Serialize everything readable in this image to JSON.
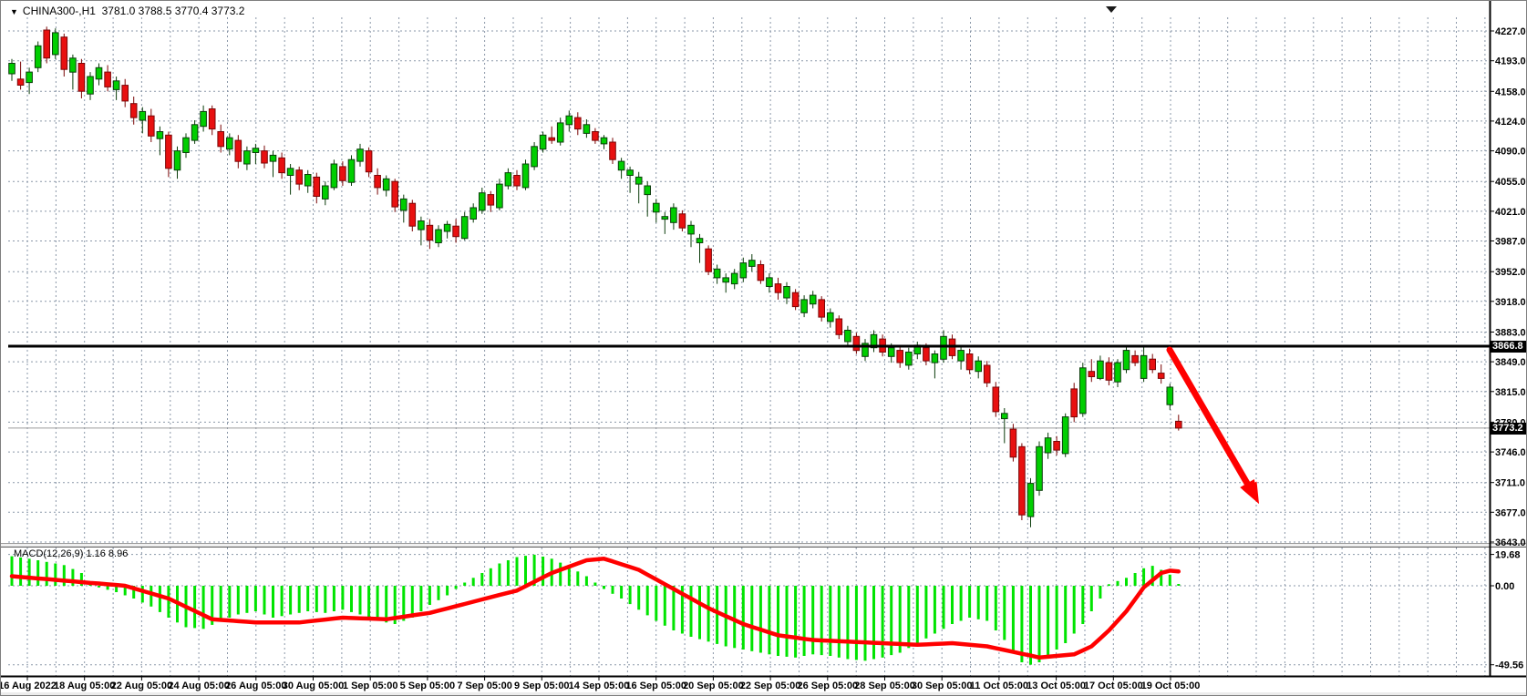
{
  "header": {
    "dropdown_icon": "▼",
    "symbol_period": "CHINA300-,H1",
    "ohlc": "3781.0 3788.5 3770.4 3773.2"
  },
  "indicator": {
    "label": "MACD(12,26,9) 1.16 8.96",
    "name": "MACD",
    "params": "12,26,9",
    "macd_value": "1.16",
    "signal_value": "8.96"
  },
  "levels": {
    "hline": {
      "label": "3866.8",
      "value": 3866.8
    },
    "last_price": {
      "label": "3773.2",
      "value": 3773.2
    }
  },
  "colors": {
    "bull_fill": "#00ce00",
    "bull_border": "#0b3d0b",
    "bear_fill": "#e81010",
    "bear_border": "#7a0606",
    "histogram": "#00e400",
    "signal_line": "#ff0000",
    "grid": "#8a97a8",
    "axis": "#000000",
    "arrow": "#ff0000",
    "hline": "#000000",
    "last_price_line": "#9a9a9a"
  },
  "chart_data": {
    "type": "candlestick",
    "symbol": "CHINA300-",
    "timeframe": "H1",
    "title": "CHINA300-,H1 3781.0 3788.5 3770.4 3773.2",
    "grid": true,
    "y_axis": {
      "max": 4227,
      "min": 3643,
      "labels": [
        "4227.0",
        "4193.0",
        "4158.0",
        "4124.0",
        "4090.0",
        "4055.0",
        "4021.0",
        "3987.0",
        "3952.0",
        "3918.0",
        "3883.0",
        "3849.0",
        "3815.0",
        "3780.0",
        "3746.0",
        "3711.0",
        "3677.0",
        "3643.0"
      ]
    },
    "x_labels": [
      "16 Aug 2022",
      "18 Aug 05:00",
      "22 Aug 05:00",
      "24 Aug 05:00",
      "26 Aug 05:00",
      "30 Aug 05:00",
      "1 Sep 05:00",
      "5 Sep 05:00",
      "7 Sep 05:00",
      "9 Sep 05:00",
      "14 Sep 05:00",
      "16 Sep 05:00",
      "20 Sep 05:00",
      "22 Sep 05:00",
      "26 Sep 05:00",
      "28 Sep 05:00",
      "30 Sep 05:00",
      "11 Oct 05:00",
      "13 Oct 05:00",
      "17 Oct 05:00",
      "19 Oct 05:00"
    ],
    "horizontal_line": 3866.8,
    "last_price": 3773.2,
    "last_bar_ohlc": [
      3781.0,
      3788.5,
      3770.4,
      3773.2
    ],
    "arrow_annotation": {
      "type": "arrow",
      "direction": "down-right",
      "color": "#ff0000"
    },
    "candles": [
      [
        4178,
        4195,
        4170,
        4190
      ],
      [
        4172,
        4192,
        4160,
        4165
      ],
      [
        4168,
        4185,
        4155,
        4180
      ],
      [
        4185,
        4215,
        4180,
        4210
      ],
      [
        4228,
        4232,
        4190,
        4196
      ],
      [
        4200,
        4230,
        4195,
        4225
      ],
      [
        4220,
        4224,
        4175,
        4183
      ],
      [
        4180,
        4200,
        4160,
        4196
      ],
      [
        4190,
        4195,
        4150,
        4158
      ],
      [
        4155,
        4180,
        4148,
        4175
      ],
      [
        4172,
        4190,
        4165,
        4185
      ],
      [
        4180,
        4188,
        4158,
        4163
      ],
      [
        4160,
        4175,
        4148,
        4170
      ],
      [
        4165,
        4172,
        4140,
        4147
      ],
      [
        4144,
        4152,
        4120,
        4128
      ],
      [
        4125,
        4140,
        4110,
        4135
      ],
      [
        4130,
        4138,
        4100,
        4107
      ],
      [
        4104,
        4118,
        4085,
        4112
      ],
      [
        4108,
        4112,
        4060,
        4070
      ],
      [
        4068,
        4095,
        4058,
        4090
      ],
      [
        4088,
        4110,
        4082,
        4105
      ],
      [
        4102,
        4125,
        4098,
        4120
      ],
      [
        4118,
        4142,
        4112,
        4135
      ],
      [
        4138,
        4142,
        4108,
        4115
      ],
      [
        4112,
        4120,
        4088,
        4095
      ],
      [
        4092,
        4110,
        4085,
        4105
      ],
      [
        4102,
        4108,
        4070,
        4078
      ],
      [
        4075,
        4095,
        4068,
        4090
      ],
      [
        4088,
        4098,
        4075,
        4093
      ],
      [
        4090,
        4096,
        4070,
        4076
      ],
      [
        4078,
        4090,
        4060,
        4085
      ],
      [
        4082,
        4088,
        4058,
        4065
      ],
      [
        4062,
        4075,
        4040,
        4070
      ],
      [
        4068,
        4072,
        4045,
        4052
      ],
      [
        4050,
        4068,
        4042,
        4063
      ],
      [
        4060,
        4065,
        4030,
        4038
      ],
      [
        4035,
        4055,
        4028,
        4050
      ],
      [
        4048,
        4080,
        4045,
        4075
      ],
      [
        4072,
        4078,
        4050,
        4056
      ],
      [
        4054,
        4085,
        4050,
        4080
      ],
      [
        4078,
        4098,
        4072,
        4092
      ],
      [
        4090,
        4094,
        4060,
        4066
      ],
      [
        4062,
        4070,
        4040,
        4048
      ],
      [
        4045,
        4062,
        4038,
        4058
      ],
      [
        4055,
        4058,
        4020,
        4026
      ],
      [
        4022,
        4040,
        4008,
        4035
      ],
      [
        4030,
        4034,
        3998,
        4004
      ],
      [
        4000,
        4015,
        3982,
        4010
      ],
      [
        4005,
        4012,
        3978,
        3988
      ],
      [
        3985,
        4005,
        3980,
        4000
      ],
      [
        3998,
        4010,
        3990,
        4006
      ],
      [
        4004,
        4012,
        3985,
        3992
      ],
      [
        3990,
        4020,
        3988,
        4015
      ],
      [
        4012,
        4030,
        4008,
        4025
      ],
      [
        4022,
        4048,
        4018,
        4042
      ],
      [
        4040,
        4044,
        4020,
        4028
      ],
      [
        4025,
        4058,
        4022,
        4052
      ],
      [
        4050,
        4070,
        4046,
        4065
      ],
      [
        4062,
        4068,
        4045,
        4050
      ],
      [
        4048,
        4080,
        4045,
        4075
      ],
      [
        4072,
        4100,
        4068,
        4095
      ],
      [
        4092,
        4112,
        4088,
        4108
      ],
      [
        4105,
        4118,
        4098,
        4102
      ],
      [
        4100,
        4128,
        4096,
        4122
      ],
      [
        4120,
        4136,
        4112,
        4130
      ],
      [
        4128,
        4134,
        4108,
        4115
      ],
      [
        4110,
        4126,
        4105,
        4120
      ],
      [
        4112,
        4116,
        4098,
        4102
      ],
      [
        4098,
        4108,
        4092,
        4105
      ],
      [
        4100,
        4105,
        4075,
        4080
      ],
      [
        4068,
        4082,
        4058,
        4078
      ],
      [
        4062,
        4072,
        4042,
        4068
      ],
      [
        4052,
        4066,
        4030,
        4060
      ],
      [
        4040,
        4055,
        4015,
        4050
      ],
      [
        4020,
        4035,
        4008,
        4030
      ],
      [
        4012,
        4020,
        3995,
        4015
      ],
      [
        4008,
        4030,
        4000,
        4025
      ],
      [
        4018,
        4022,
        3998,
        4002
      ],
      [
        3995,
        4010,
        3980,
        4005
      ],
      [
        3985,
        3995,
        3962,
        3990
      ],
      [
        3978,
        3982,
        3948,
        3952
      ],
      [
        3945,
        3960,
        3938,
        3955
      ],
      [
        3940,
        3950,
        3928,
        3945
      ],
      [
        3938,
        3955,
        3932,
        3950
      ],
      [
        3945,
        3968,
        3940,
        3962
      ],
      [
        3958,
        3972,
        3952,
        3965
      ],
      [
        3960,
        3965,
        3938,
        3942
      ],
      [
        3935,
        3950,
        3928,
        3945
      ],
      [
        3938,
        3945,
        3920,
        3928
      ],
      [
        3922,
        3940,
        3915,
        3935
      ],
      [
        3928,
        3932,
        3908,
        3912
      ],
      [
        3905,
        3925,
        3900,
        3920
      ],
      [
        3915,
        3930,
        3910,
        3925
      ],
      [
        3920,
        3924,
        3895,
        3900
      ],
      [
        3895,
        3910,
        3888,
        3905
      ],
      [
        3898,
        3902,
        3875,
        3880
      ],
      [
        3872,
        3890,
        3868,
        3885
      ],
      [
        3878,
        3882,
        3858,
        3862
      ],
      [
        3855,
        3875,
        3850,
        3870
      ],
      [
        3865,
        3885,
        3860,
        3880
      ],
      [
        3875,
        3880,
        3855,
        3860
      ],
      [
        3855,
        3870,
        3848,
        3865
      ],
      [
        3862,
        3868,
        3842,
        3848
      ],
      [
        3845,
        3865,
        3840,
        3860
      ],
      [
        3858,
        3872,
        3852,
        3868
      ],
      [
        3865,
        3870,
        3845,
        3850
      ],
      [
        3848,
        3862,
        3830,
        3858
      ],
      [
        3852,
        3885,
        3848,
        3878
      ],
      [
        3875,
        3880,
        3852,
        3856
      ],
      [
        3850,
        3868,
        3840,
        3862
      ],
      [
        3858,
        3864,
        3835,
        3840
      ],
      [
        3838,
        3855,
        3830,
        3850
      ],
      [
        3845,
        3850,
        3820,
        3825
      ],
      [
        3820,
        3826,
        3786,
        3792
      ],
      [
        3784,
        3796,
        3756,
        3790
      ],
      [
        3772,
        3778,
        3735,
        3740
      ],
      [
        3752,
        3756,
        3668,
        3674
      ],
      [
        3672,
        3716,
        3660,
        3710
      ],
      [
        3702,
        3758,
        3696,
        3752
      ],
      [
        3745,
        3768,
        3738,
        3762
      ],
      [
        3758,
        3764,
        3742,
        3748
      ],
      [
        3744,
        3790,
        3740,
        3786
      ],
      [
        3818,
        3825,
        3780,
        3786
      ],
      [
        3790,
        3848,
        3786,
        3842
      ],
      [
        3838,
        3852,
        3826,
        3832
      ],
      [
        3830,
        3856,
        3828,
        3850
      ],
      [
        3848,
        3854,
        3822,
        3828
      ],
      [
        3826,
        3852,
        3820,
        3848
      ],
      [
        3840,
        3867,
        3836,
        3862
      ],
      [
        3856,
        3862,
        3844,
        3848
      ],
      [
        3830,
        3866,
        3826,
        3856
      ],
      [
        3852,
        3858,
        3836,
        3840
      ],
      [
        3836,
        3846,
        3824,
        3830
      ],
      [
        3800,
        3824,
        3794,
        3820
      ],
      [
        3781,
        3788.5,
        3770.4,
        3773.2
      ]
    ],
    "indicator_panel": {
      "type": "bar+line",
      "name": "MACD(12,26,9)",
      "y_labels": [
        "19.68",
        "0.00",
        "-49.56"
      ],
      "y_max": 19.68,
      "y_min": -49.56,
      "histogram": [
        18.5,
        17.8,
        17,
        16,
        15,
        14,
        13,
        10.5,
        8,
        2,
        -1,
        -2.5,
        -4,
        -6,
        -8,
        -10.5,
        -13,
        -16.5,
        -20,
        -23,
        -26,
        -26.5,
        -27,
        -24.5,
        -22,
        -20,
        -18,
        -17,
        -16,
        -18,
        -20,
        -19,
        -18,
        -17,
        -16,
        -16.5,
        -17,
        -16,
        -15,
        -16.5,
        -18,
        -20,
        -22,
        -23,
        -24,
        -22,
        -20,
        -16,
        -12,
        -9,
        -6,
        -2,
        2,
        5,
        8,
        11,
        14,
        16,
        18,
        18.8,
        19.5,
        18.3,
        17,
        14.5,
        12,
        9,
        6,
        2,
        -2,
        -5,
        -8,
        -11.5,
        -15,
        -18.5,
        -22,
        -25,
        -28,
        -30,
        -32,
        -33.5,
        -35,
        -36.5,
        -38,
        -39,
        -40,
        -41,
        -42,
        -43,
        -44,
        -44.5,
        -45,
        -44,
        -43,
        -43.5,
        -44,
        -45,
        -46,
        -46.5,
        -47,
        -46,
        -45,
        -43.5,
        -42,
        -39,
        -36,
        -33,
        -30,
        -27,
        -24,
        -22,
        -20,
        -21,
        -22,
        -28,
        -34,
        -42,
        -48,
        -49.5,
        -48,
        -44,
        -40,
        -36,
        -30,
        -24,
        -16,
        -8,
        1,
        3,
        5,
        8,
        11,
        12.5,
        10,
        7,
        1.16
      ],
      "signal": [
        6,
        5.5,
        5.1,
        4.6,
        4.2,
        3.7,
        3.2,
        2.8,
        2.3,
        1.8,
        1.4,
        0.9,
        0.5,
        0,
        -1.6,
        -3.2,
        -4.8,
        -6.4,
        -8,
        -10.6,
        -13.2,
        -15.8,
        -18.4,
        -21,
        -21.4,
        -21.8,
        -22.2,
        -22.6,
        -23,
        -23,
        -23,
        -23,
        -23,
        -23,
        -22.4,
        -21.8,
        -21.2,
        -20.6,
        -20,
        -20.2,
        -20.4,
        -20.6,
        -20.8,
        -21,
        -20.2,
        -19.4,
        -18.6,
        -17.8,
        -17,
        -15.6,
        -14.2,
        -12.8,
        -11.4,
        -10,
        -8.6,
        -7.2,
        -5.8,
        -4.4,
        -3,
        -0.3,
        2.5,
        5.3,
        8,
        10,
        12,
        14,
        16,
        16.5,
        17,
        15.3,
        13.5,
        11.8,
        10,
        7,
        4,
        1,
        -2,
        -5,
        -8,
        -11,
        -14,
        -16.5,
        -19,
        -21.5,
        -24,
        -25.8,
        -27.5,
        -29.3,
        -31,
        -31.8,
        -32.5,
        -33.3,
        -34,
        -34.3,
        -34.5,
        -34.8,
        -35,
        -35.3,
        -35.5,
        -35.8,
        -36,
        -36.3,
        -36.5,
        -36.8,
        -37,
        -36.8,
        -36.5,
        -36.3,
        -36,
        -36.5,
        -37,
        -37.5,
        -38,
        -39.2,
        -40.3,
        -41.5,
        -42.7,
        -43.8,
        -45,
        -44.5,
        -44,
        -43.5,
        -43,
        -40.5,
        -38,
        -33,
        -28,
        -22,
        -16,
        -8.5,
        -1,
        3.5,
        8,
        9.5,
        8.96
      ]
    }
  }
}
